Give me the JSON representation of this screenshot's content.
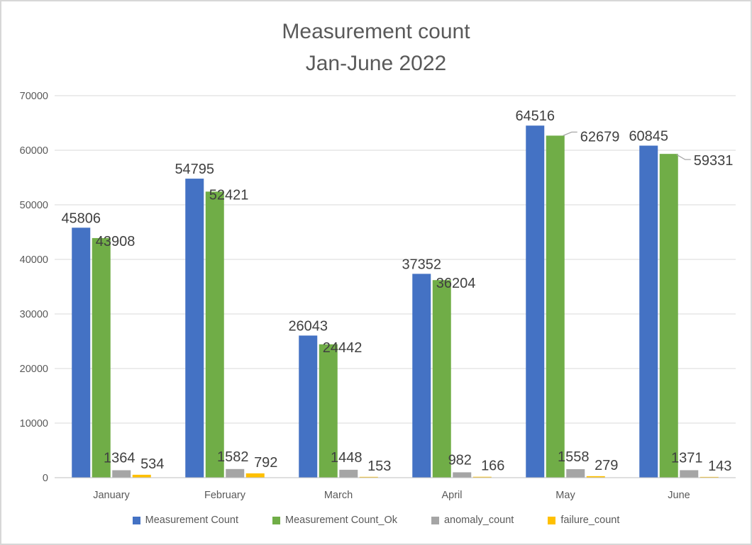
{
  "chart_data": {
    "type": "bar",
    "title": "Measurement count",
    "subtitle": "Jan-June 2022",
    "categories": [
      "January",
      "February",
      "March",
      "April",
      "May",
      "June"
    ],
    "series": [
      {
        "name": "Measurement Count",
        "color": "#4472C4",
        "values": [
          45806,
          54795,
          26043,
          37352,
          64516,
          60845
        ]
      },
      {
        "name": "Measurement Count_Ok",
        "color": "#70AD47",
        "values": [
          43908,
          52421,
          24442,
          36204,
          62679,
          59331
        ]
      },
      {
        "name": "anomaly_count",
        "color": "#A5A5A5",
        "values": [
          1364,
          1582,
          1448,
          982,
          1558,
          1371
        ]
      },
      {
        "name": "failure_count",
        "color": "#FFC000",
        "values": [
          534,
          792,
          153,
          166,
          279,
          143
        ]
      }
    ],
    "ylim": [
      0,
      70000
    ],
    "yticks": [
      0,
      10000,
      20000,
      30000,
      40000,
      50000,
      60000,
      70000
    ],
    "grid": true,
    "legend_position": "bottom",
    "data_labels": true,
    "leader_line_labels": [
      {
        "series": "Measurement Count_Ok",
        "category": "May",
        "value": 62679
      },
      {
        "series": "Measurement Count_Ok",
        "category": "June",
        "value": 59331
      }
    ],
    "colors": {
      "title_text": "#595959",
      "axis_text": "#595959",
      "data_label_text": "#404040",
      "gridline": "#D9D9D9",
      "axis_line": "#BFBFBF",
      "leader_line": "#A6A6A6",
      "frame_border": "#D7D7D7"
    }
  }
}
